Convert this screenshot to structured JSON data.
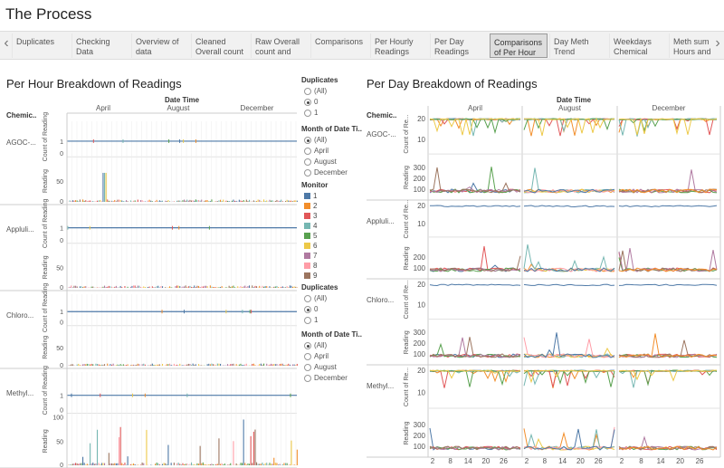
{
  "title": "The Process",
  "tabs": [
    "Duplicates",
    "Checking Data",
    "Overview of data Checking",
    "Cleaned Overall count",
    "Raw Overall count and",
    "Comparisons",
    "Per Hourly Readings and",
    "Per Day Readings And",
    "Comparisons of Per Hour",
    "Day Meth Trend analysis",
    "Weekdays Chemical Trend",
    "Meth sum Hours and"
  ],
  "active_tab": 8,
  "colors": {
    "1": "#4e79a7",
    "2": "#f28e2b",
    "3": "#e15759",
    "4": "#76b7b2",
    "5": "#59a14f",
    "6": "#edc948",
    "7": "#b07aa1",
    "8": "#ff9da7",
    "9": "#9c755f"
  },
  "left": {
    "title": "Per Hour Breakdown of Readings",
    "header": "Date Time",
    "months": [
      "April",
      "August",
      "December"
    ],
    "row_field": "Chemic..",
    "chemicals": [
      "AGOC-...",
      "Appluli...",
      "Chloro...",
      "Methyl..."
    ],
    "count_label": "Count of Reading",
    "reading_label": "Reading",
    "count_ticks": [
      "0",
      "1"
    ],
    "reading_ticks": [
      "0",
      "50",
      "100"
    ]
  },
  "right": {
    "title": "Per Day Breakdown of Readings",
    "header": "Date Time",
    "months": [
      "April",
      "August",
      "December"
    ],
    "row_field": "Chemic..",
    "chemicals": [
      "AGOC-...",
      "Appluli...",
      "Chloro...",
      "Methyl..."
    ],
    "count_label": "Count of Re...",
    "reading_label": "Reading",
    "count_ticks": [
      "20",
      "10"
    ],
    "reading_ticks": [
      "300",
      "200",
      "100"
    ],
    "x_ticks": [
      "2",
      "8",
      "14",
      "20",
      "26"
    ]
  },
  "legend1": {
    "title": "Duplicates",
    "options": [
      "(All)",
      "0",
      "1"
    ],
    "selected": 1
  },
  "legend2": {
    "title": "Month of Date Ti..",
    "options": [
      "(All)",
      "April",
      "August",
      "December"
    ],
    "selected": 0
  },
  "monitor": {
    "title": "Monitor",
    "items": [
      "1",
      "2",
      "3",
      "4",
      "5",
      "6",
      "7",
      "8",
      "9"
    ]
  },
  "legend3": {
    "title": "Duplicates",
    "options": [
      "(All)",
      "0",
      "1"
    ],
    "selected": 1
  },
  "legend4": {
    "title": "Month of Date Ti..",
    "options": [
      "(All)",
      "April",
      "August",
      "December"
    ],
    "selected": 0
  }
}
